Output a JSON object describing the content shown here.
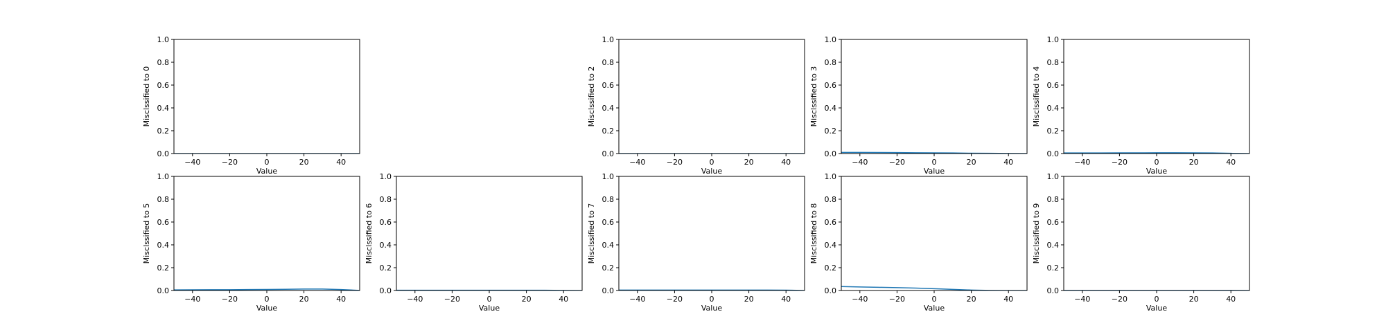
{
  "figure": {
    "background": "#ffffff",
    "line_color": "#1f77b4",
    "axis_color": "#000000"
  },
  "chart_data": [
    {
      "type": "line",
      "ylabel": "Misclssified to 0",
      "xlabel": "Value",
      "xlim": [
        -50,
        50
      ],
      "ylim": [
        0.0,
        1.0
      ],
      "xticks": [
        -40,
        -20,
        0,
        20,
        40
      ],
      "yticks": [
        0.0,
        0.2,
        0.4,
        0.6,
        0.8,
        1.0
      ],
      "xtick_labels": [
        "−40",
        "−20",
        "0",
        "20",
        "40"
      ],
      "ytick_labels": [
        "0.0",
        "0.2",
        "0.4",
        "0.6",
        "0.8",
        "1.0"
      ],
      "series": [
        {
          "x": [
            -50,
            -40,
            -30,
            -20,
            -10,
            0,
            10,
            20,
            30,
            40,
            50
          ],
          "y": [
            0,
            0,
            0,
            0,
            0,
            0,
            0,
            0,
            0,
            0,
            0
          ]
        }
      ]
    },
    null,
    {
      "type": "line",
      "ylabel": "Misclssified to 2",
      "xlabel": "Value",
      "xlim": [
        -50,
        50
      ],
      "ylim": [
        0.0,
        1.0
      ],
      "xticks": [
        -40,
        -20,
        0,
        20,
        40
      ],
      "yticks": [
        0.0,
        0.2,
        0.4,
        0.6,
        0.8,
        1.0
      ],
      "xtick_labels": [
        "−40",
        "−20",
        "0",
        "20",
        "40"
      ],
      "ytick_labels": [
        "0.0",
        "0.2",
        "0.4",
        "0.6",
        "0.8",
        "1.0"
      ],
      "series": [
        {
          "x": [
            -50,
            -40,
            -30,
            -20,
            -10,
            0,
            10,
            20,
            30,
            40,
            50
          ],
          "y": [
            0,
            0,
            0,
            0,
            0,
            0,
            0,
            0,
            0,
            0,
            0
          ]
        }
      ]
    },
    {
      "type": "line",
      "ylabel": "Misclssified to 3",
      "xlabel": "Value",
      "xlim": [
        -50,
        50
      ],
      "ylim": [
        0.0,
        1.0
      ],
      "xticks": [
        -40,
        -20,
        0,
        20,
        40
      ],
      "yticks": [
        0.0,
        0.2,
        0.4,
        0.6,
        0.8,
        1.0
      ],
      "xtick_labels": [
        "−40",
        "−20",
        "0",
        "20",
        "40"
      ],
      "ytick_labels": [
        "0.0",
        "0.2",
        "0.4",
        "0.6",
        "0.8",
        "1.0"
      ],
      "series": [
        {
          "x": [
            -50,
            -40,
            -30,
            -20,
            -10,
            0,
            10,
            20,
            30,
            40,
            50
          ],
          "y": [
            0.01,
            0.01,
            0.009,
            0.008,
            0.007,
            0.006,
            0.005,
            0.003,
            0.002,
            0.001,
            0
          ]
        }
      ]
    },
    {
      "type": "line",
      "ylabel": "Misclssified to 4",
      "xlabel": "Value",
      "xlim": [
        -50,
        50
      ],
      "ylim": [
        0.0,
        1.0
      ],
      "xticks": [
        -40,
        -20,
        0,
        20,
        40
      ],
      "yticks": [
        0.0,
        0.2,
        0.4,
        0.6,
        0.8,
        1.0
      ],
      "xtick_labels": [
        "−40",
        "−20",
        "0",
        "20",
        "40"
      ],
      "ytick_labels": [
        "0.0",
        "0.2",
        "0.4",
        "0.6",
        "0.8",
        "1.0"
      ],
      "series": [
        {
          "x": [
            -50,
            -40,
            -30,
            -20,
            -10,
            0,
            10,
            20,
            30,
            40,
            50
          ],
          "y": [
            0.005,
            0.005,
            0.005,
            0.006,
            0.006,
            0.007,
            0.007,
            0.006,
            0.005,
            0.002,
            0
          ]
        }
      ]
    },
    {
      "type": "line",
      "ylabel": "Misclssified to 5",
      "xlabel": "Value",
      "xlim": [
        -50,
        50
      ],
      "ylim": [
        0.0,
        1.0
      ],
      "xticks": [
        -40,
        -20,
        0,
        20,
        40
      ],
      "yticks": [
        0.0,
        0.2,
        0.4,
        0.6,
        0.8,
        1.0
      ],
      "xtick_labels": [
        "−40",
        "−20",
        "0",
        "20",
        "40"
      ],
      "ytick_labels": [
        "0.0",
        "0.2",
        "0.4",
        "0.6",
        "0.8",
        "1.0"
      ],
      "series": [
        {
          "x": [
            -50,
            -40,
            -30,
            -20,
            -10,
            0,
            10,
            20,
            30,
            40,
            50
          ],
          "y": [
            0.005,
            0.006,
            0.007,
            0.007,
            0.008,
            0.009,
            0.011,
            0.013,
            0.013,
            0.008,
            0.001
          ]
        }
      ]
    },
    {
      "type": "line",
      "ylabel": "Misclssified to 6",
      "xlabel": "Value",
      "xlim": [
        -50,
        50
      ],
      "ylim": [
        0.0,
        1.0
      ],
      "xticks": [
        -40,
        -20,
        0,
        20,
        40
      ],
      "yticks": [
        0.0,
        0.2,
        0.4,
        0.6,
        0.8,
        1.0
      ],
      "xtick_labels": [
        "−40",
        "−20",
        "0",
        "20",
        "40"
      ],
      "ytick_labels": [
        "0.0",
        "0.2",
        "0.4",
        "0.6",
        "0.8",
        "1.0"
      ],
      "series": [
        {
          "x": [
            -50,
            -40,
            -30,
            -20,
            -10,
            0,
            10,
            20,
            30,
            40,
            50
          ],
          "y": [
            0.002,
            0.002,
            0.002,
            0.002,
            0.002,
            0.002,
            0.002,
            0.002,
            0.002,
            0.001,
            0
          ]
        }
      ]
    },
    {
      "type": "line",
      "ylabel": "Misclssified to 7",
      "xlabel": "Value",
      "xlim": [
        -50,
        50
      ],
      "ylim": [
        0.0,
        1.0
      ],
      "xticks": [
        -40,
        -20,
        0,
        20,
        40
      ],
      "yticks": [
        0.0,
        0.2,
        0.4,
        0.6,
        0.8,
        1.0
      ],
      "xtick_labels": [
        "−40",
        "−20",
        "0",
        "20",
        "40"
      ],
      "ytick_labels": [
        "0.0",
        "0.2",
        "0.4",
        "0.6",
        "0.8",
        "1.0"
      ],
      "series": [
        {
          "x": [
            -50,
            -40,
            -30,
            -20,
            -10,
            0,
            10,
            20,
            30,
            40,
            50
          ],
          "y": [
            0.004,
            0.004,
            0.004,
            0.004,
            0.004,
            0.004,
            0.004,
            0.004,
            0.004,
            0.003,
            0
          ]
        }
      ]
    },
    {
      "type": "line",
      "ylabel": "Misclssified to 8",
      "xlabel": "Value",
      "xlim": [
        -50,
        50
      ],
      "ylim": [
        0.0,
        1.0
      ],
      "xticks": [
        -40,
        -20,
        0,
        20,
        40
      ],
      "yticks": [
        0.0,
        0.2,
        0.4,
        0.6,
        0.8,
        1.0
      ],
      "xtick_labels": [
        "−40",
        "−20",
        "0",
        "20",
        "40"
      ],
      "ytick_labels": [
        "0.0",
        "0.2",
        "0.4",
        "0.6",
        "0.8",
        "1.0"
      ],
      "series": [
        {
          "x": [
            -50,
            -40,
            -30,
            -20,
            -10,
            0,
            10,
            20,
            30,
            40,
            50
          ],
          "y": [
            0.035,
            0.031,
            0.028,
            0.025,
            0.021,
            0.016,
            0.01,
            0.004,
            0.001,
            0,
            0
          ]
        }
      ]
    },
    {
      "type": "line",
      "ylabel": "Misclssified to 9",
      "xlabel": "Value",
      "xlim": [
        -50,
        50
      ],
      "ylim": [
        0.0,
        1.0
      ],
      "xticks": [
        -40,
        -20,
        0,
        20,
        40
      ],
      "yticks": [
        0.0,
        0.2,
        0.4,
        0.6,
        0.8,
        1.0
      ],
      "xtick_labels": [
        "−40",
        "−20",
        "0",
        "20",
        "40"
      ],
      "ytick_labels": [
        "0.0",
        "0.2",
        "0.4",
        "0.6",
        "0.8",
        "1.0"
      ],
      "series": [
        {
          "x": [
            -50,
            -40,
            -30,
            -20,
            -10,
            0,
            10,
            20,
            30,
            40,
            50
          ],
          "y": [
            0.001,
            0.001,
            0.001,
            0.001,
            0.001,
            0.001,
            0.001,
            0.001,
            0.001,
            0.001,
            0
          ]
        }
      ]
    }
  ]
}
